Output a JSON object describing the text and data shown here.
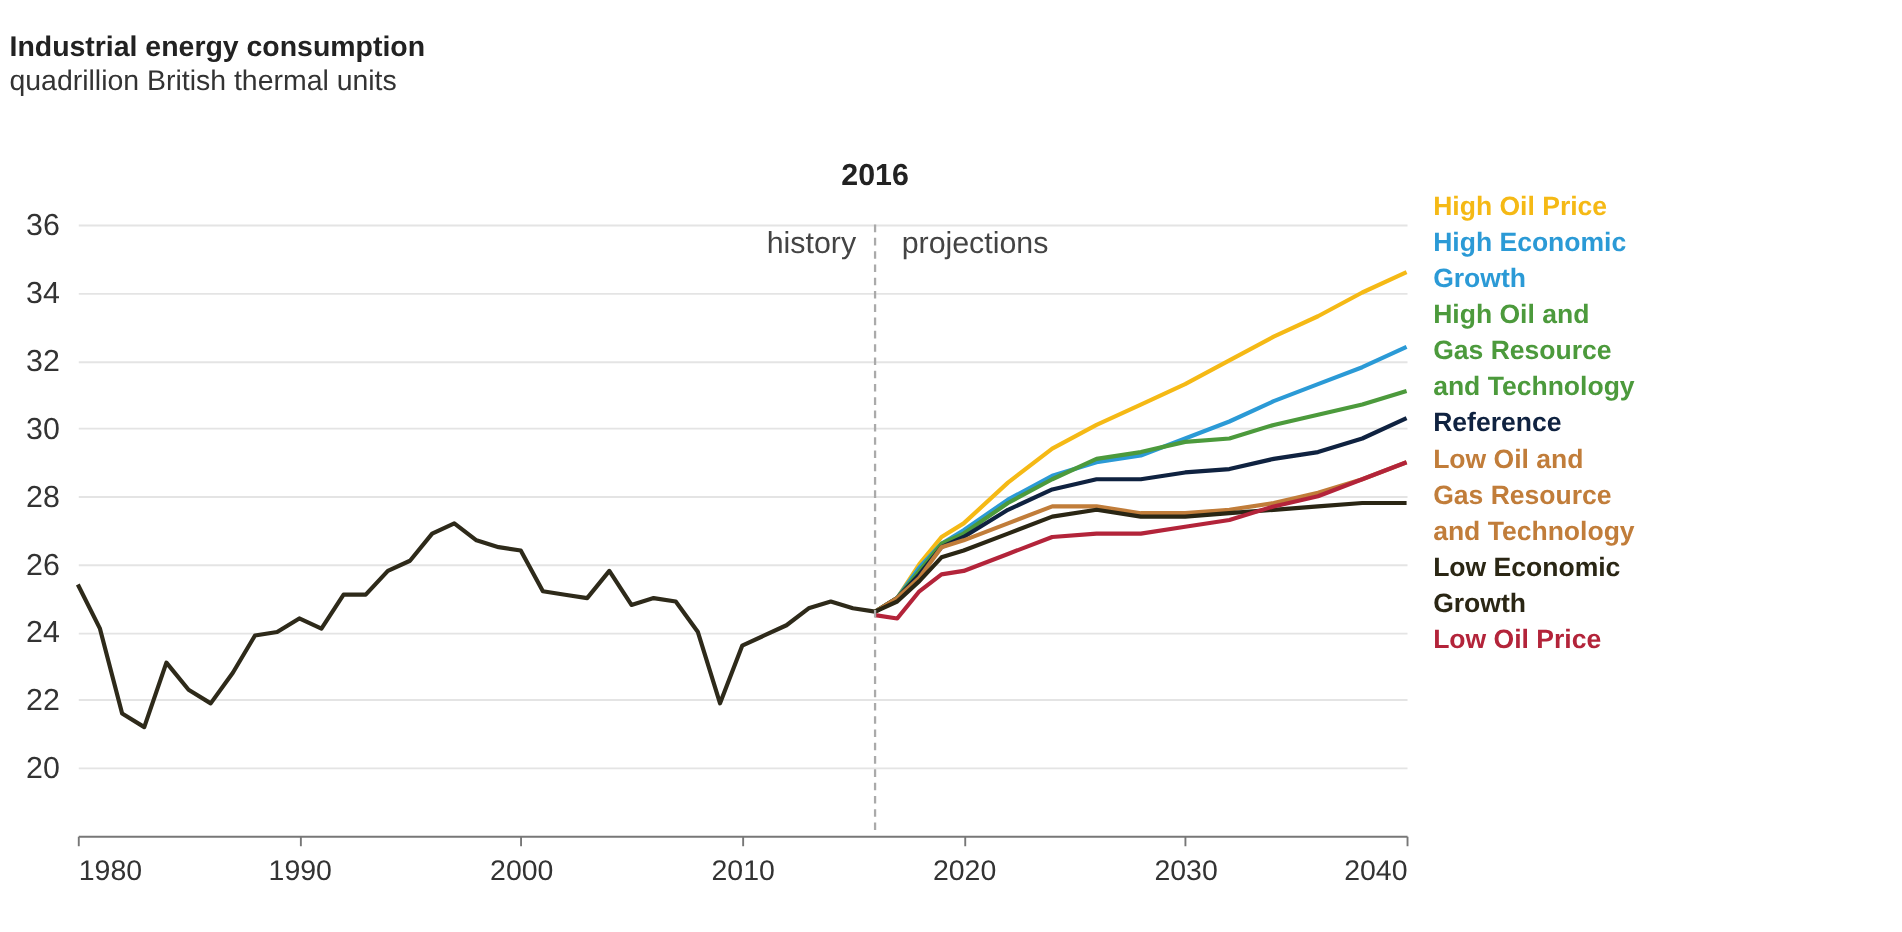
{
  "chart_data": {
    "type": "line",
    "title": "Industrial energy consumption",
    "subtitle": "quadrillion British thermal units",
    "xlim": [
      1980,
      2040
    ],
    "xticks": [
      1980,
      1990,
      2000,
      2010,
      2020,
      2030,
      2040
    ],
    "ylim": [
      18,
      36
    ],
    "yticks": [
      20,
      22,
      24,
      26,
      28,
      30,
      32,
      34,
      36
    ],
    "grid": "y",
    "legend": "right",
    "line_style": "solid",
    "marker": "none",
    "ref_lines": [
      {
        "axis": "x",
        "value": 2016,
        "label": "2016",
        "color": "#aaaaaa",
        "line_style": "dashed"
      }
    ],
    "annotations": [
      "history",
      "projections"
    ],
    "series": [
      {
        "color": "#2e2a1a",
        "x": [
          1980,
          1981,
          1982,
          1983,
          1984,
          1985,
          1986,
          1987,
          1988,
          1989,
          1990,
          1991,
          1992,
          1993,
          1994,
          1995,
          1996,
          1997,
          1998,
          1999,
          2000,
          2001,
          2002,
          2003,
          2004,
          2005,
          2006,
          2007,
          2008,
          2009,
          2010,
          2011,
          2012,
          2013,
          2014,
          2015,
          2016
        ],
        "values": [
          25.4,
          24.1,
          21.6,
          21.2,
          23.1,
          22.3,
          21.9,
          22.8,
          23.9,
          24.0,
          24.4,
          24.1,
          25.1,
          25.1,
          25.8,
          26.1,
          26.9,
          27.2,
          26.7,
          26.5,
          26.4,
          25.2,
          25.1,
          25.0,
          25.8,
          24.8,
          25.0,
          24.9,
          24.0,
          21.9,
          23.6,
          23.9,
          24.2,
          24.7,
          24.9,
          24.7,
          24.6
        ]
      },
      {
        "name": "High Oil Price",
        "color": "#f5b915",
        "x": [
          2016,
          2017,
          2018,
          2019,
          2020,
          2022,
          2024,
          2026,
          2028,
          2030,
          2032,
          2034,
          2036,
          2038,
          2040
        ],
        "values": [
          24.6,
          25.0,
          26.0,
          26.8,
          27.2,
          28.4,
          29.4,
          30.1,
          30.7,
          31.3,
          32.0,
          32.7,
          33.3,
          34.0,
          34.6
        ]
      },
      {
        "name": "High Economic Growth",
        "color": "#2b9ad6",
        "x": [
          2016,
          2017,
          2018,
          2019,
          2020,
          2022,
          2024,
          2026,
          2028,
          2030,
          2032,
          2034,
          2036,
          2038,
          2040
        ],
        "values": [
          24.6,
          25.0,
          25.9,
          26.6,
          27.0,
          27.9,
          28.6,
          29.0,
          29.2,
          29.7,
          30.2,
          30.8,
          31.3,
          31.8,
          32.4
        ]
      },
      {
        "name": "High Oil and Gas Resource and Technology",
        "color": "#4c9a3c",
        "x": [
          2016,
          2017,
          2018,
          2019,
          2020,
          2022,
          2024,
          2026,
          2028,
          2030,
          2032,
          2034,
          2036,
          2038,
          2040
        ],
        "values": [
          24.6,
          25.0,
          25.8,
          26.6,
          26.9,
          27.8,
          28.5,
          29.1,
          29.3,
          29.6,
          29.7,
          30.1,
          30.4,
          30.7,
          31.1
        ]
      },
      {
        "name": "Reference",
        "color": "#0f2240",
        "x": [
          2016,
          2017,
          2018,
          2019,
          2020,
          2022,
          2024,
          2026,
          2028,
          2030,
          2032,
          2034,
          2036,
          2038,
          2040
        ],
        "values": [
          24.6,
          25.0,
          25.7,
          26.5,
          26.8,
          27.6,
          28.2,
          28.5,
          28.5,
          28.7,
          28.8,
          29.1,
          29.3,
          29.7,
          30.3
        ]
      },
      {
        "name": "Low Oil and Gas Resource and Technology",
        "color": "#c17d3a",
        "x": [
          2016,
          2017,
          2018,
          2019,
          2020,
          2022,
          2024,
          2026,
          2028,
          2030,
          2032,
          2034,
          2036,
          2038,
          2040
        ],
        "values": [
          24.6,
          25.0,
          25.6,
          26.5,
          26.7,
          27.2,
          27.7,
          27.7,
          27.5,
          27.5,
          27.6,
          27.8,
          28.1,
          28.5,
          29.0
        ]
      },
      {
        "name": "Low Economic Growth",
        "color": "#2a2614",
        "x": [
          2016,
          2017,
          2018,
          2019,
          2020,
          2022,
          2024,
          2026,
          2028,
          2030,
          2032,
          2034,
          2036,
          2038,
          2040
        ],
        "values": [
          24.6,
          24.9,
          25.5,
          26.2,
          26.4,
          26.9,
          27.4,
          27.6,
          27.4,
          27.4,
          27.5,
          27.6,
          27.7,
          27.8,
          27.8
        ]
      },
      {
        "name": "Low Oil Price",
        "color": "#b3243a",
        "x": [
          2016,
          2017,
          2018,
          2019,
          2020,
          2022,
          2024,
          2026,
          2028,
          2030,
          2032,
          2034,
          2036,
          2038,
          2040
        ],
        "values": [
          24.5,
          24.4,
          25.2,
          25.7,
          25.8,
          26.3,
          26.8,
          26.9,
          26.9,
          27.1,
          27.3,
          27.7,
          28.0,
          28.5,
          29.0
        ]
      }
    ]
  }
}
